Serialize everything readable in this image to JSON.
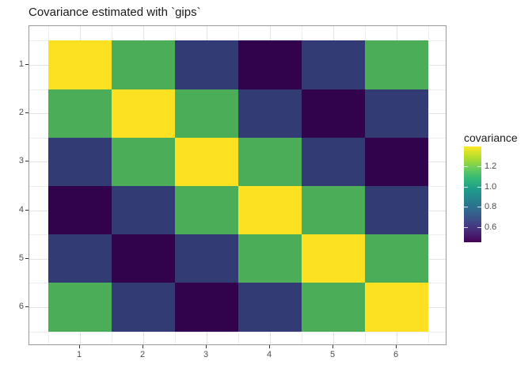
{
  "title": "Covariance estimated with `gips`",
  "axes": {
    "x": {
      "ticks": [
        "1",
        "2",
        "3",
        "4",
        "5",
        "6"
      ]
    },
    "y": {
      "ticks": [
        "1",
        "2",
        "3",
        "4",
        "5",
        "6"
      ]
    }
  },
  "legend": {
    "title": "covariance",
    "position": "right",
    "ticks": [
      {
        "label": "1.2",
        "value": 1.2
      },
      {
        "label": "1.0",
        "value": 1.0
      },
      {
        "label": "0.8",
        "value": 0.8
      },
      {
        "label": "0.6",
        "value": 0.6
      }
    ]
  },
  "chart_data": {
    "type": "heatmap",
    "title": "Covariance estimated with `gips`",
    "x": [
      "1",
      "2",
      "3",
      "4",
      "5",
      "6"
    ],
    "y": [
      "1",
      "2",
      "3",
      "4",
      "5",
      "6"
    ],
    "matrix": [
      [
        1.4,
        1.12,
        0.63,
        0.47,
        0.63,
        1.12
      ],
      [
        1.12,
        1.4,
        1.12,
        0.63,
        0.47,
        0.63
      ],
      [
        0.63,
        1.12,
        1.4,
        1.12,
        0.63,
        0.47
      ],
      [
        0.47,
        0.63,
        1.12,
        1.4,
        1.12,
        0.63
      ],
      [
        0.63,
        0.47,
        0.63,
        1.12,
        1.4,
        1.12
      ],
      [
        1.12,
        0.63,
        0.47,
        0.63,
        1.12,
        1.4
      ]
    ],
    "colorbar_title": "covariance",
    "colorbar_ticks": [
      0.6,
      0.8,
      1.0,
      1.2
    ],
    "scale_range": [
      0.45,
      1.4
    ],
    "palette_name": "viridis",
    "value_colors": {
      "1.4": "#fbe122",
      "1.12": "#4bad58",
      "0.63": "#333b75",
      "0.47": "#31034c"
    },
    "viridis_stops": [
      "#440154",
      "#482878",
      "#3e4a89",
      "#31688e",
      "#26828e",
      "#1f9e89",
      "#35b779",
      "#6ece58",
      "#b5de2b",
      "#fde725"
    ],
    "grid": true,
    "legend_position": "right"
  },
  "colors": {
    "background": "#ffffff",
    "panel_border": "#999999",
    "grid_major": "#e3e3e3",
    "grid_minor": "#efefef",
    "tick_mark": "#333333",
    "tick_label": "#4d4d4d",
    "title_text": "#1a1a1a"
  }
}
